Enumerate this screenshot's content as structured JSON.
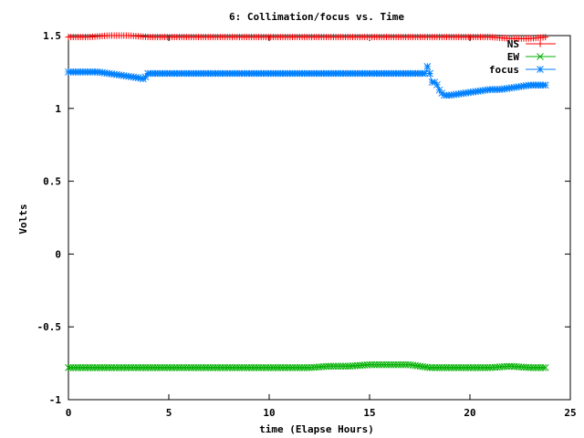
{
  "chart_data": {
    "type": "line",
    "title": "6: Collimation/focus vs. Time",
    "xlabel": "time (Elapse Hours)",
    "ylabel": "Volts",
    "xlim": [
      0,
      25
    ],
    "ylim": [
      -1,
      1.5
    ],
    "xticks": [
      0,
      5,
      10,
      15,
      20,
      25
    ],
    "xtick_labels": [
      "0",
      "5",
      "10",
      "15",
      "20",
      "25"
    ],
    "yticks": [
      -1,
      -0.5,
      0,
      0.5,
      1,
      1.5
    ],
    "ytick_labels": [
      "-1",
      "-0.5",
      "0",
      "0.5",
      "1",
      "1.5"
    ],
    "grid": false,
    "legend_position": "top-right",
    "series": [
      {
        "name": "NS",
        "color": "#ff0000",
        "marker": "plus",
        "x": [
          0,
          1,
          2,
          3,
          4,
          5,
          6,
          7,
          8,
          9,
          10,
          11,
          12,
          13,
          14,
          15,
          16,
          17,
          18,
          19,
          20,
          21,
          22,
          23,
          23.8
        ],
        "y": [
          1.49,
          1.49,
          1.5,
          1.5,
          1.49,
          1.49,
          1.49,
          1.49,
          1.49,
          1.49,
          1.49,
          1.49,
          1.49,
          1.49,
          1.49,
          1.49,
          1.49,
          1.49,
          1.49,
          1.49,
          1.49,
          1.49,
          1.48,
          1.48,
          1.49
        ]
      },
      {
        "name": "EW",
        "color": "#00b000",
        "marker": "cross",
        "x": [
          0,
          1,
          2,
          3,
          4,
          5,
          6,
          7,
          8,
          9,
          10,
          11,
          12,
          13,
          14,
          15,
          16,
          17,
          18,
          19,
          20,
          21,
          22,
          23,
          23.8
        ],
        "y": [
          -0.78,
          -0.78,
          -0.78,
          -0.78,
          -0.78,
          -0.78,
          -0.78,
          -0.78,
          -0.78,
          -0.78,
          -0.78,
          -0.78,
          -0.78,
          -0.77,
          -0.77,
          -0.76,
          -0.76,
          -0.76,
          -0.78,
          -0.78,
          -0.78,
          -0.78,
          -0.77,
          -0.78,
          -0.78
        ]
      },
      {
        "name": "focus",
        "color": "#0080ff",
        "marker": "star",
        "x": [
          0,
          1,
          1.5,
          2,
          2.5,
          3,
          3.5,
          3.8,
          3.9,
          5,
          6,
          7,
          8,
          9,
          10,
          11,
          12,
          13,
          14,
          15,
          16,
          17,
          17.5,
          17.8,
          17.9,
          18.1,
          18.3,
          18.5,
          18.7,
          19,
          19.5,
          20,
          20.5,
          21,
          21.5,
          22,
          22.5,
          23,
          23.5,
          23.8
        ],
        "y": [
          1.25,
          1.25,
          1.25,
          1.24,
          1.23,
          1.22,
          1.21,
          1.2,
          1.24,
          1.24,
          1.24,
          1.24,
          1.24,
          1.24,
          1.24,
          1.24,
          1.24,
          1.24,
          1.24,
          1.24,
          1.24,
          1.24,
          1.24,
          1.24,
          1.3,
          1.18,
          1.18,
          1.12,
          1.09,
          1.09,
          1.1,
          1.11,
          1.12,
          1.13,
          1.13,
          1.14,
          1.15,
          1.16,
          1.16,
          1.16
        ]
      }
    ]
  }
}
